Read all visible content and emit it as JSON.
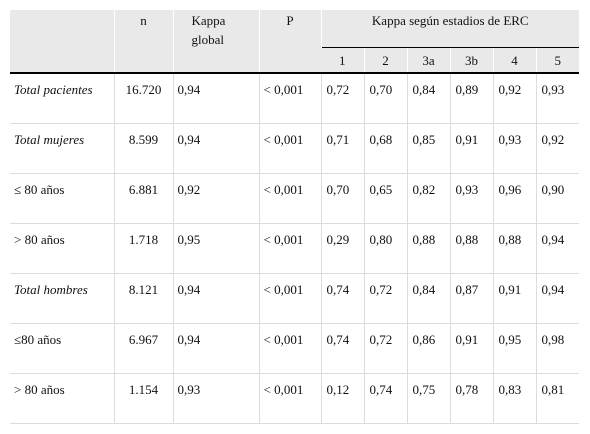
{
  "table": {
    "headers": {
      "n": "n",
      "kappa_global": "Kappa global",
      "p": "P",
      "kappa_group": "Kappa según estadios de ERC",
      "stages": [
        "1",
        "2",
        "3a",
        "3b",
        "4",
        "5"
      ]
    },
    "rows": [
      {
        "label": "Total pacientes",
        "italic": true,
        "n": "16.720",
        "kappa": "0,94",
        "p": "< 0,001",
        "stages": [
          "0,72",
          "0,70",
          "0,84",
          "0,89",
          "0,92",
          "0,93"
        ]
      },
      {
        "label": "Total mujeres",
        "italic": true,
        "n": "8.599",
        "kappa": "0,94",
        "p": "< 0,001",
        "stages": [
          "0,71",
          "0,68",
          "0,85",
          "0,91",
          "0,93",
          "0,92"
        ]
      },
      {
        "label": "≤ 80 años",
        "italic": false,
        "n": "6.881",
        "kappa": "0,92",
        "p": "< 0,001",
        "stages": [
          "0,70",
          "0,65",
          "0,82",
          "0,93",
          "0,96",
          "0,90"
        ]
      },
      {
        "label": "> 80 años",
        "italic": false,
        "n": "1.718",
        "kappa": "0,95",
        "p": "< 0,001",
        "stages": [
          "0,29",
          "0,80",
          "0,88",
          "0,88",
          "0,88",
          "0,94"
        ]
      },
      {
        "label": "Total hombres",
        "italic": true,
        "n": "8.121",
        "kappa": "0,94",
        "p": "< 0,001",
        "stages": [
          "0,74",
          "0,72",
          "0,84",
          "0,87",
          "0,91",
          "0,94"
        ]
      },
      {
        "label": "≤80 años",
        "italic": false,
        "n": "6.967",
        "kappa": "0,94",
        "p": "< 0,001",
        "stages": [
          "0,74",
          "0,72",
          "0,86",
          "0,91",
          "0,95",
          "0,98"
        ]
      },
      {
        "label": "> 80 años",
        "italic": false,
        "n": "1.154",
        "kappa": "0,93",
        "p": "< 0,001",
        "stages": [
          "0,12",
          "0,74",
          "0,75",
          "0,78",
          "0,83",
          "0,81"
        ]
      }
    ]
  }
}
